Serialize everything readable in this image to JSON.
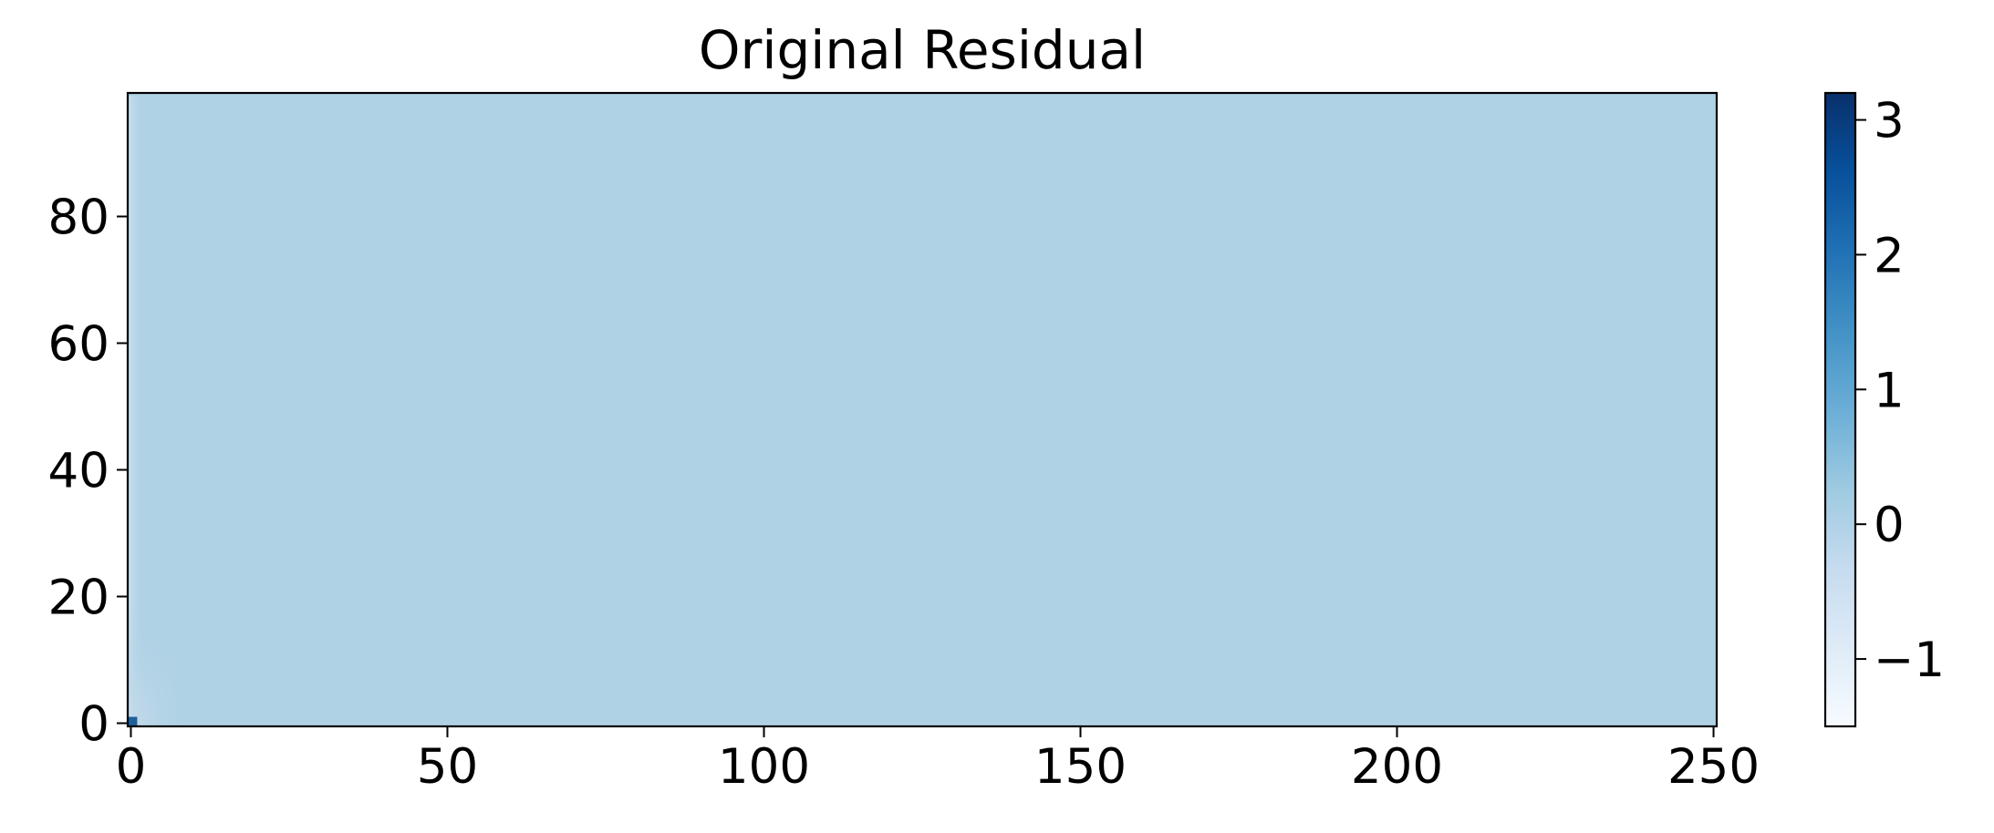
{
  "chart_data": {
    "type": "heatmap",
    "title": "Original Residual",
    "xlabel": "",
    "ylabel": "",
    "xlim": [
      -0.5,
      250.5
    ],
    "ylim": [
      -0.5,
      99.5
    ],
    "x_ticks": [
      0,
      50,
      100,
      150,
      200,
      250
    ],
    "x_tick_labels": [
      "0",
      "50",
      "100",
      "150",
      "200",
      "250"
    ],
    "y_ticks": [
      0,
      20,
      40,
      60,
      80
    ],
    "y_tick_labels": [
      "0",
      "20",
      "40",
      "60",
      "80"
    ],
    "grid": false,
    "colormap": "Blues",
    "colorbar": {
      "range": [
        -1.5,
        3.2
      ],
      "ticks": [
        -1,
        0,
        1,
        2,
        3
      ],
      "tick_labels": [
        "−1",
        "0",
        "1",
        "2",
        "3"
      ],
      "colors": [
        "#f7fbff",
        "#deebf7",
        "#c6dbef",
        "#9ecae1",
        "#6baed6",
        "#4292c6",
        "#2171b5",
        "#08519c",
        "#08306b"
      ]
    },
    "dominant_value": 0.0,
    "dominant_color": "#b0d2e5",
    "features": [
      {
        "region": "bottom-left corner",
        "x_range": [
          0,
          1
        ],
        "y_range": [
          0,
          1
        ],
        "value": 3.2
      },
      {
        "region": "left edge",
        "x_range": [
          0,
          2
        ],
        "y_range": [
          0,
          99
        ],
        "value": -0.5
      },
      {
        "region": "near origin",
        "x_range": [
          0,
          10
        ],
        "y_range": [
          0,
          18
        ],
        "value": -0.2
      }
    ]
  }
}
